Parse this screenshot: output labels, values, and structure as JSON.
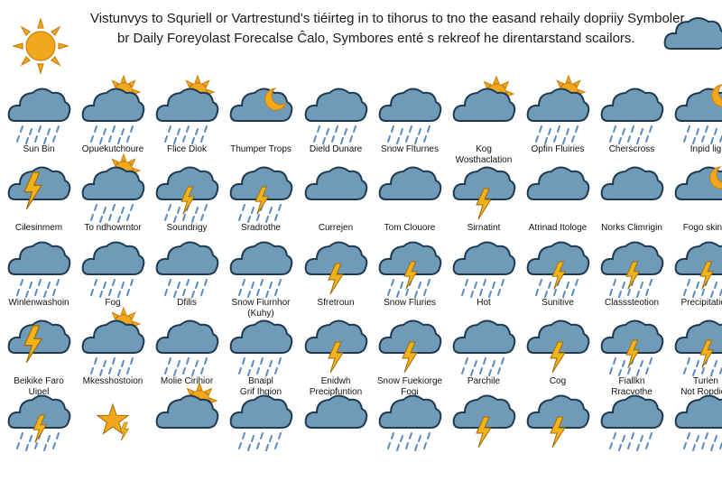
{
  "header": {
    "line1": "Vistunvys to Squriell or Vartrestund's tiéirteg in to tihorus to tno the easand rehaily dopriiy Symboler",
    "line2": "br Daily Foreyolast Forecalse Ĉalo, Symbores enté s rekreof he direntarstand scailors."
  },
  "colors": {
    "cloud": "#6f9bb8",
    "cloud_outline": "#1f3a4f",
    "sun": "#f2a81d",
    "bolt": "#f1b21c",
    "rain": "#5b8cc0"
  },
  "rows": [
    {
      "cells": [
        {
          "label": "Sun Bin",
          "icon": "cloud-rain-icon"
        },
        {
          "label": "Opuekutchoure",
          "icon": "cloud-sun-rain-icon"
        },
        {
          "label": "Flice Diok",
          "icon": "cloud-sun-rain-icon"
        },
        {
          "label": "Thumper Trops",
          "icon": "cloud-moon-icon"
        },
        {
          "label": "Dield Dunare",
          "icon": "cloud-rain-icon"
        },
        {
          "label": "Snow Flturnes",
          "icon": "cloud-rain-icon"
        },
        {
          "label": "Kog\nWosthaclation",
          "icon": "cloud-sun-icon"
        },
        {
          "label": "Opfin Fluiries",
          "icon": "cloud-sun-rain-icon"
        },
        {
          "label": "Cherscross",
          "icon": "cloud-rain-icon"
        },
        {
          "label": "Inpid lig",
          "icon": "cloud-moon-rain-icon"
        }
      ]
    },
    {
      "cells": [
        {
          "label": "Cilesinmem",
          "icon": "lightning-bolt-icon"
        },
        {
          "label": "To ndhowrntor",
          "icon": "cloud-sun-rain-icon"
        },
        {
          "label": "Soundrigy",
          "icon": "cloud-storm-rain-icon"
        },
        {
          "label": "Sradrothe",
          "icon": "cloud-storm-rain-icon"
        },
        {
          "label": "Currejen",
          "icon": "cloud-icon"
        },
        {
          "label": "Tom Clouore",
          "icon": "cloud-icon"
        },
        {
          "label": "Sirnatint",
          "icon": "cloud-storm-icon"
        },
        {
          "label": "Atrinad Itologe",
          "icon": "cloud-icon"
        },
        {
          "label": "Norks Climrigin",
          "icon": "cloud-icon"
        },
        {
          "label": "Fogo skinw",
          "icon": "cloud-moon-icon"
        }
      ]
    },
    {
      "cells": [
        {
          "label": "Winlenwashoin",
          "icon": "cloud-rain-icon"
        },
        {
          "label": "Fog",
          "icon": "cloud-rain-icon"
        },
        {
          "label": "Dfilis",
          "icon": "cloud-rain-icon"
        },
        {
          "label": "Snow Fiurnhor\n(Kuhy)",
          "icon": "cloud-rain-icon"
        },
        {
          "label": "Sfretroun",
          "icon": "cloud-storm-icon"
        },
        {
          "label": "Snow Fluries",
          "icon": "cloud-storm-rain-icon"
        },
        {
          "label": "Hot",
          "icon": "cloud-rain-icon"
        },
        {
          "label": "Sunitive",
          "icon": "cloud-storm-rain-icon"
        },
        {
          "label": "Classsteotion",
          "icon": "cloud-storm-rain-icon"
        },
        {
          "label": "Precipitation",
          "icon": "cloud-storm-rain-icon"
        }
      ]
    },
    {
      "cells": [
        {
          "label": "Beikike Faro\nUipel",
          "icon": "lightning-bolt-icon"
        },
        {
          "label": "Mkesshostoion",
          "icon": "cloud-sun-rain-icon"
        },
        {
          "label": "Molie Cirihior",
          "icon": "cloud-rain-icon"
        },
        {
          "label": "Bnaipl\nGrif Ihgion",
          "icon": "cloud-rain-icon"
        },
        {
          "label": "Enidwh\nPrecipfuntion",
          "icon": "cloud-storm-icon"
        },
        {
          "label": "Snow Fuekiorge\nFogi",
          "icon": "cloud-storm-icon"
        },
        {
          "label": "Parchile",
          "icon": "cloud-rain-icon"
        },
        {
          "label": "Cog",
          "icon": "cloud-storm-icon"
        },
        {
          "label": "Fiallkn\nRracvothe",
          "icon": "cloud-storm-rain-icon"
        },
        {
          "label": "Turien\nNot Ropdion",
          "icon": "cloud-storm-rain-icon"
        }
      ]
    },
    {
      "cells": [
        {
          "label": "",
          "icon": "cloud-storm-rain-icon"
        },
        {
          "label": "",
          "icon": "lightning-star-icon"
        },
        {
          "label": "",
          "icon": "cloud-sun-icon"
        },
        {
          "label": "",
          "icon": "cloud-rain-icon"
        },
        {
          "label": "",
          "icon": "cloud-icon"
        },
        {
          "label": "",
          "icon": "cloud-rain-icon"
        },
        {
          "label": "",
          "icon": "cloud-storm-icon"
        },
        {
          "label": "",
          "icon": "cloud-storm-icon"
        },
        {
          "label": "",
          "icon": "cloud-rain-icon"
        },
        {
          "label": "",
          "icon": "cloud-rain-icon"
        }
      ]
    }
  ]
}
